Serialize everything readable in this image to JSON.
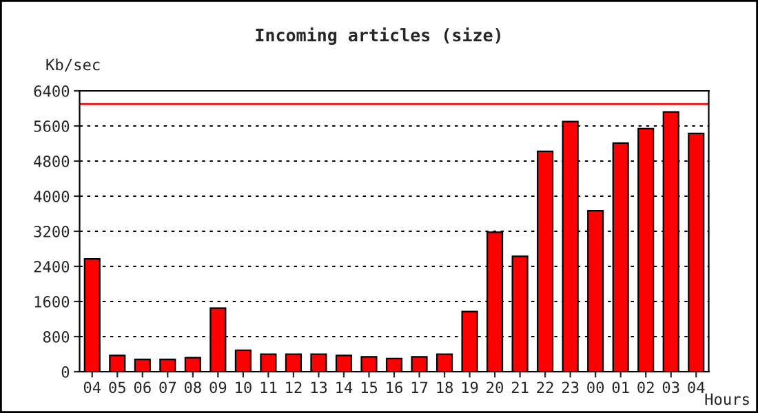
{
  "chart_data": {
    "type": "bar",
    "title": "Incoming articles (size)",
    "ylabel": "Kb/sec",
    "xlabel": "Hours",
    "categories": [
      "04",
      "05",
      "06",
      "07",
      "08",
      "09",
      "10",
      "11",
      "12",
      "13",
      "14",
      "15",
      "16",
      "17",
      "18",
      "19",
      "20",
      "21",
      "22",
      "23",
      "00",
      "01",
      "02",
      "03",
      "04"
    ],
    "series": [
      {
        "color": "#ff0000",
        "values": [
          2570,
          370,
          280,
          280,
          320,
          1450,
          490,
          400,
          400,
          400,
          370,
          340,
          300,
          340,
          400,
          1370,
          3180,
          2630,
          5020,
          5700,
          3670,
          5210,
          5540,
          5920,
          5430
        ]
      }
    ],
    "ylim": [
      0,
      6400
    ],
    "yticks": [
      0,
      800,
      1600,
      2400,
      3200,
      4000,
      4800,
      5600,
      6400
    ],
    "grid": "y",
    "legend": false,
    "ref_lines": [
      {
        "axis": "y",
        "value": 6100,
        "color": "#ff0000",
        "line_style": "solid"
      }
    ]
  }
}
